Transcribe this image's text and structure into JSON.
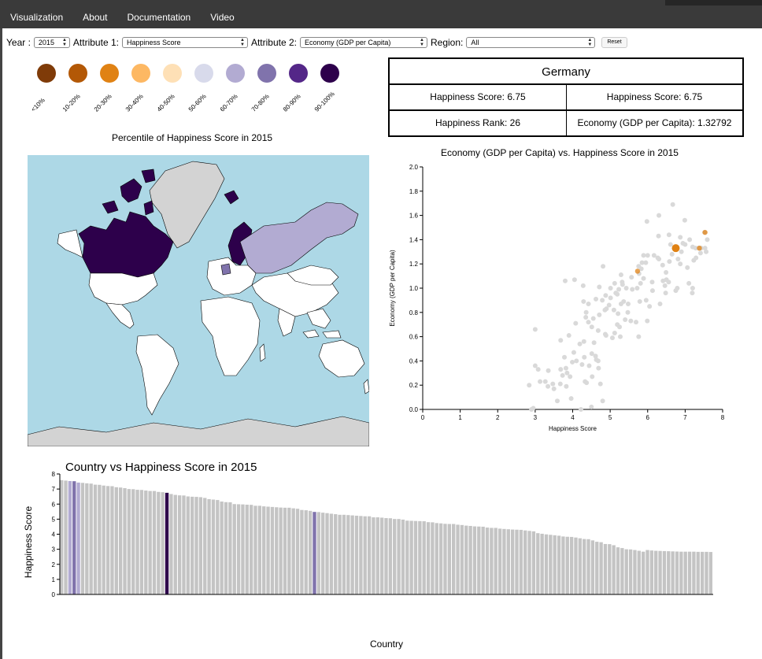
{
  "nav": [
    "Visualization",
    "About",
    "Documentation",
    "Video"
  ],
  "controls": {
    "year_label": "Year :",
    "year_value": "2015",
    "attr1_label": "Attribute 1:",
    "attr1_value": "Happiness Score",
    "attr2_label": "Attribute 2:",
    "attr2_value": "Economy (GDP per Capita)",
    "region_label": "Region:",
    "region_value": "All",
    "reset_label": "Reset"
  },
  "legend": {
    "title": "Percentile of Happiness Score in 2015",
    "items": [
      {
        "label": "<10%",
        "color": "#7f3b08"
      },
      {
        "label": "10-20%",
        "color": "#b35806"
      },
      {
        "label": "20-30%",
        "color": "#e08214"
      },
      {
        "label": "30-40%",
        "color": "#fdb863"
      },
      {
        "label": "40-50%",
        "color": "#fee0b6"
      },
      {
        "label": "50-60%",
        "color": "#d8daeb"
      },
      {
        "label": "60-70%",
        "color": "#b2abd2"
      },
      {
        "label": "70-80%",
        "color": "#8073ac"
      },
      {
        "label": "80-90%",
        "color": "#542788"
      },
      {
        "label": "90-100%",
        "color": "#2d004b"
      }
    ]
  },
  "map": {
    "ocean_color": "#add8e6",
    "land_color": "#d3d3d3"
  },
  "info": {
    "country": "Germany",
    "cells": [
      "Happiness Score: 6.75",
      "Happiness Score: 6.75",
      "Happiness Rank: 26",
      "Economy (GDP per Capita): 1.32792"
    ]
  },
  "scatter": {
    "chart_data": {
      "type": "scatter",
      "title": "Economy (GDP per Capita) vs. Happiness Score in 2015",
      "xlabel": "Happiness Score",
      "ylabel": "Economy (GDP per Capita)",
      "xlim": [
        0,
        8
      ],
      "ylim": [
        0,
        2
      ],
      "xticks": [
        "0",
        "1",
        "2",
        "3",
        "4",
        "5",
        "6",
        "7",
        "8"
      ],
      "yticks": [
        "0.0",
        "0.2",
        "0.4",
        "0.6",
        "0.8",
        "1.0",
        "1.2",
        "1.4",
        "1.6",
        "1.8",
        "2.0"
      ],
      "highlight_color": "#e08214",
      "highlight_points": [
        [
          6.75,
          1.33
        ],
        [
          5.73,
          1.14
        ],
        [
          7.53,
          1.46
        ],
        [
          7.38,
          1.33
        ]
      ],
      "points": [
        [
          7.59,
          1.4
        ],
        [
          7.56,
          1.3
        ],
        [
          7.53,
          1.33
        ],
        [
          7.52,
          1.46
        ],
        [
          7.43,
          1.33
        ],
        [
          7.41,
          1.29
        ],
        [
          7.38,
          1.33
        ],
        [
          7.36,
          1.33
        ],
        [
          7.29,
          1.25
        ],
        [
          7.28,
          1.33
        ],
        [
          7.23,
          1.23
        ],
        [
          7.2,
          1.34
        ],
        [
          7.19,
          0.96
        ],
        [
          7.12,
          1.4
        ],
        [
          7.1,
          1.04
        ],
        [
          7.06,
          1.17
        ],
        [
          6.99,
          1.56
        ],
        [
          6.94,
          1.37
        ],
        [
          6.9,
          1.3
        ],
        [
          6.87,
          1.42
        ],
        [
          6.87,
          1.2
        ],
        [
          6.81,
          1.24
        ],
        [
          6.79,
          1.0
        ],
        [
          6.75,
          0.98
        ],
        [
          6.67,
          1.69
        ],
        [
          6.61,
          1.36
        ],
        [
          6.58,
          1.22
        ],
        [
          6.57,
          1.44
        ],
        [
          6.5,
          1.07
        ],
        [
          6.49,
          1.13
        ],
        [
          6.48,
          0.96
        ],
        [
          6.46,
          1.02
        ],
        [
          6.41,
          1.06
        ],
        [
          6.33,
          0.87
        ],
        [
          6.3,
          1.24
        ],
        [
          6.27,
          1.25
        ],
        [
          6.17,
          1.27
        ],
        [
          6.13,
          0.98
        ],
        [
          6.12,
          1.05
        ],
        [
          6.0,
          1.27
        ],
        [
          5.99,
          0.73
        ],
        [
          5.98,
          1.55
        ],
        [
          5.96,
          0.9
        ],
        [
          5.95,
          1.21
        ],
        [
          5.89,
          1.27
        ],
        [
          5.89,
          1.08
        ],
        [
          5.85,
          1.21
        ],
        [
          5.83,
          1.16
        ],
        [
          5.81,
          1.04
        ],
        [
          5.79,
          0.89
        ],
        [
          5.77,
          1.12
        ],
        [
          5.76,
          1.18
        ],
        [
          5.72,
          1.0
        ],
        [
          5.69,
          0.72
        ],
        [
          5.59,
          0.99
        ],
        [
          5.55,
          0.73
        ],
        [
          5.48,
          0.87
        ],
        [
          5.47,
          0.8
        ],
        [
          5.43,
          1.0
        ],
        [
          5.4,
          0.74
        ],
        [
          5.36,
          0.89
        ],
        [
          5.33,
          1.03
        ],
        [
          5.29,
          0.87
        ],
        [
          5.29,
          1.11
        ],
        [
          5.27,
          0.6
        ],
        [
          5.25,
          0.68
        ],
        [
          5.23,
          0.99
        ],
        [
          5.21,
          0.79
        ],
        [
          5.19,
          0.95
        ],
        [
          5.19,
          0.7
        ],
        [
          5.12,
          1.04
        ],
        [
          5.12,
          0.63
        ],
        [
          5.1,
          0.82
        ],
        [
          5.06,
          0.59
        ],
        [
          5.01,
          1.0
        ],
        [
          4.97,
          0.86
        ],
        [
          4.9,
          0.83
        ],
        [
          4.89,
          0.61
        ],
        [
          4.88,
          0.94
        ],
        [
          4.87,
          0.62
        ],
        [
          4.86,
          0.82
        ],
        [
          4.8,
          0.07
        ],
        [
          4.79,
          0.9
        ],
        [
          4.74,
          0.21
        ],
        [
          4.71,
          0.78
        ],
        [
          4.69,
          0.34
        ],
        [
          4.68,
          0.65
        ],
        [
          4.68,
          0.4
        ],
        [
          4.63,
          0.41
        ],
        [
          4.61,
          0.44
        ],
        [
          4.57,
          0.55
        ],
        [
          4.55,
          0.75
        ],
        [
          4.52,
          0.27
        ],
        [
          4.51,
          0.46
        ],
        [
          4.5,
          0.02
        ],
        [
          4.44,
          0.36
        ],
        [
          4.42,
          0.87
        ],
        [
          4.42,
          0.72
        ],
        [
          4.37,
          0.22
        ],
        [
          4.35,
          0.76
        ],
        [
          4.33,
          0.23
        ],
        [
          4.31,
          0.43
        ],
        [
          4.3,
          0.56
        ],
        [
          4.29,
          0.89
        ],
        [
          4.25,
          0.37
        ],
        [
          4.22,
          0.0
        ],
        [
          4.19,
          0.54
        ],
        [
          4.1,
          0.4
        ],
        [
          4.08,
          0.71
        ],
        [
          4.03,
          0.47
        ],
        [
          3.99,
          0.39
        ],
        [
          3.96,
          0.09
        ],
        [
          3.93,
          0.27
        ],
        [
          3.9,
          0.61
        ],
        [
          3.85,
          0.3
        ],
        [
          3.83,
          0.19
        ],
        [
          3.82,
          0.34
        ],
        [
          3.78,
          0.43
        ],
        [
          3.73,
          0.28
        ],
        [
          3.68,
          0.33
        ],
        [
          3.67,
          0.21
        ],
        [
          3.59,
          0.07
        ],
        [
          3.5,
          0.17
        ],
        [
          3.47,
          0.21
        ],
        [
          3.35,
          0.32
        ],
        [
          3.34,
          0.19
        ],
        [
          3.27,
          0.23
        ],
        [
          3.13,
          0.23
        ],
        [
          3.08,
          0.33
        ],
        [
          3.0,
          0.36
        ],
        [
          3.0,
          0.66
        ],
        [
          2.95,
          0.01
        ],
        [
          2.9,
          0.0
        ],
        [
          2.84,
          0.2
        ],
        [
          3.68,
          0.57
        ],
        [
          3.8,
          1.06
        ],
        [
          4.05,
          1.07
        ],
        [
          4.28,
          1.02
        ],
        [
          4.36,
          0.8
        ],
        [
          4.51,
          0.68
        ],
        [
          4.62,
          0.91
        ],
        [
          4.71,
          1.01
        ],
        [
          4.81,
          1.18
        ],
        [
          5.01,
          0.92
        ],
        [
          5.15,
          0.96
        ],
        [
          5.32,
          1.05
        ],
        [
          5.57,
          1.09
        ],
        [
          5.76,
          0.6
        ],
        [
          6.05,
          0.85
        ],
        [
          6.29,
          1.43
        ],
        [
          6.3,
          1.6
        ],
        [
          6.4,
          1.19
        ],
        [
          6.56,
          1.05
        ],
        [
          6.65,
          1.28
        ],
        [
          7.0,
          1.36
        ],
        [
          7.2,
          1.0
        ]
      ]
    }
  },
  "bar": {
    "chart_data": {
      "type": "bar",
      "title": "Country vs Happiness Score in 2015",
      "xlabel": "Country",
      "ylabel": "Happiness Score",
      "ylim": [
        0,
        8
      ],
      "yticks": [
        "0",
        "1",
        "2",
        "3",
        "4",
        "5",
        "6",
        "7",
        "8"
      ],
      "bar_color": "#c4c4c4",
      "highlights": [
        {
          "rank": 3,
          "color": "#b2abd2"
        },
        {
          "rank": 4,
          "color": "#8073ac"
        },
        {
          "rank": 5,
          "color": "#b2abd2"
        },
        {
          "rank": 26,
          "color": "#2d004b"
        },
        {
          "rank": 61,
          "color": "#8073ac"
        }
      ],
      "values": [
        7.59,
        7.56,
        7.53,
        7.52,
        7.43,
        7.41,
        7.38,
        7.36,
        7.29,
        7.28,
        7.23,
        7.2,
        7.19,
        7.12,
        7.1,
        7.06,
        7.0,
        6.99,
        6.95,
        6.94,
        6.9,
        6.87,
        6.87,
        6.81,
        6.79,
        6.75,
        6.67,
        6.61,
        6.58,
        6.57,
        6.51,
        6.49,
        6.48,
        6.46,
        6.41,
        6.33,
        6.3,
        6.27,
        6.17,
        6.13,
        6.12,
        6.0,
        5.99,
        5.98,
        5.96,
        5.95,
        5.89,
        5.89,
        5.85,
        5.83,
        5.81,
        5.79,
        5.77,
        5.76,
        5.76,
        5.72,
        5.69,
        5.61,
        5.59,
        5.55,
        5.48,
        5.47,
        5.43,
        5.4,
        5.36,
        5.33,
        5.29,
        5.29,
        5.27,
        5.25,
        5.23,
        5.21,
        5.19,
        5.19,
        5.12,
        5.12,
        5.1,
        5.07,
        5.06,
        5.01,
        5.01,
        4.97,
        4.9,
        4.89,
        4.88,
        4.87,
        4.86,
        4.8,
        4.79,
        4.74,
        4.72,
        4.69,
        4.68,
        4.68,
        4.63,
        4.61,
        4.57,
        4.55,
        4.52,
        4.51,
        4.5,
        4.44,
        4.42,
        4.42,
        4.37,
        4.35,
        4.33,
        4.31,
        4.3,
        4.29,
        4.25,
        4.22,
        4.19,
        4.07,
        4.03,
        3.99,
        3.96,
        3.93,
        3.9,
        3.85,
        3.83,
        3.82,
        3.78,
        3.73,
        3.68,
        3.67,
        3.59,
        3.5,
        3.47,
        3.35,
        3.34,
        3.27,
        3.13,
        3.08,
        3.0,
        2.99,
        2.95,
        2.9,
        2.84,
        2.95,
        2.92,
        2.9,
        2.89,
        2.88,
        2.87,
        2.86,
        2.85,
        2.84,
        2.84,
        2.84,
        2.84,
        2.83,
        2.83,
        2.83,
        2.82
      ]
    }
  }
}
